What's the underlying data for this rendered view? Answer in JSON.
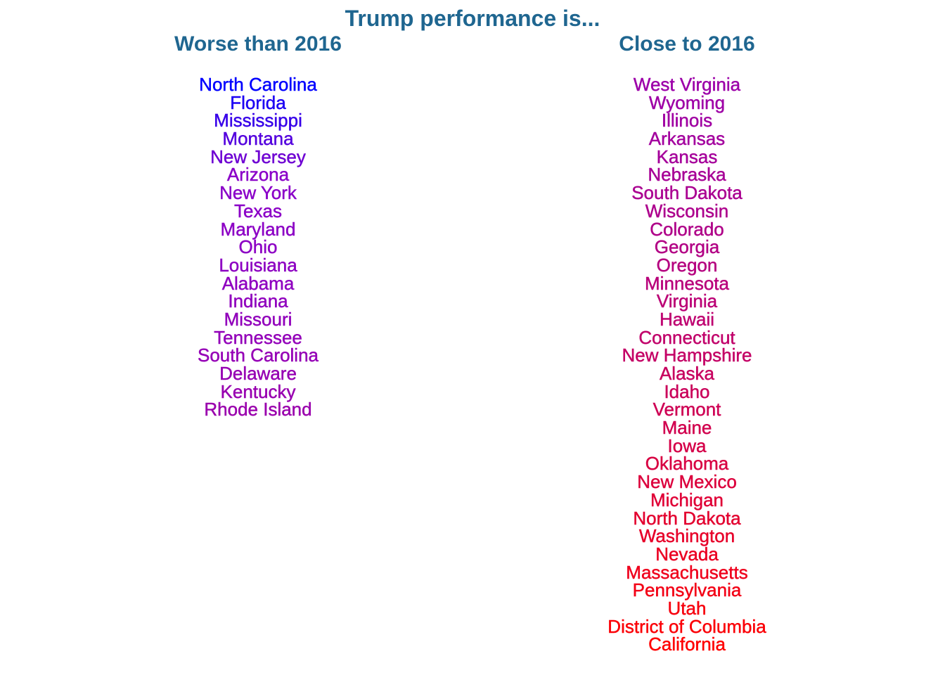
{
  "chart_data": {
    "type": "table",
    "title": "Trump performance is...",
    "colors": {
      "title": "#1f6690",
      "gradient_start": "#0000ff",
      "gradient_mid": "#8a00c8",
      "gradient_end": "#ff0000"
    },
    "columns": [
      {
        "header": "Worse than 2016",
        "items": [
          "North Carolina",
          "Florida",
          "Mississippi",
          "Montana",
          "New Jersey",
          "Arizona",
          "New York",
          "Texas",
          "Maryland",
          "Ohio",
          "Louisiana",
          "Alabama",
          "Indiana",
          "Missouri",
          "Tennessee",
          "South Carolina",
          "Delaware",
          "Kentucky",
          "Rhode Island"
        ]
      },
      {
        "header": "Close to 2016",
        "items": [
          "West Virginia",
          "Wyoming",
          "Illinois",
          "Arkansas",
          "Kansas",
          "Nebraska",
          "South Dakota",
          "Wisconsin",
          "Colorado",
          "Georgia",
          "Oregon",
          "Minnesota",
          "Virginia",
          "Hawaii",
          "Connecticut",
          "New Hampshire",
          "Alaska",
          "Idaho",
          "Vermont",
          "Maine",
          "Iowa",
          "Oklahoma",
          "New Mexico",
          "Michigan",
          "North Dakota",
          "Washington",
          "Nevada",
          "Massachusetts",
          "Pennsylvania",
          "Utah",
          "District of Columbia",
          "California"
        ]
      }
    ]
  }
}
